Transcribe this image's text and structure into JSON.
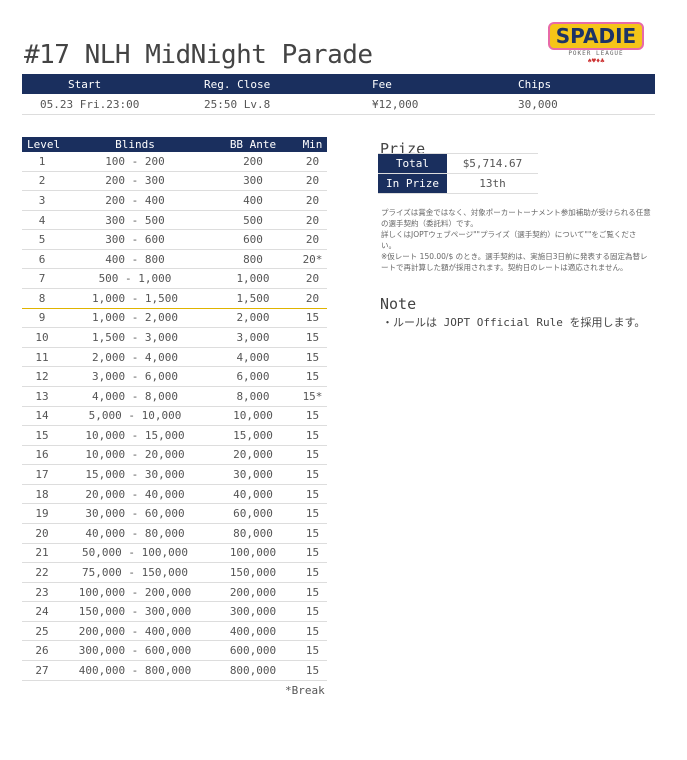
{
  "title": "#17 NLH MidNight Parade",
  "logo": {
    "text": "SPADIE",
    "sub": "POKER LEAGUE",
    "suits": "♠♥♦♣"
  },
  "info": {
    "headers": [
      "Start",
      "Reg. Close",
      "Fee",
      "Chips"
    ],
    "values": [
      "05.23 Fri.23:00",
      "25:50 Lv.8",
      "¥12,000",
      "30,000"
    ]
  },
  "blinds": {
    "headers": [
      "Level",
      "Blinds",
      "BB Ante",
      "Min"
    ],
    "rows": [
      [
        "1",
        "100 - 200",
        "200",
        "20"
      ],
      [
        "2",
        "200 - 300",
        "300",
        "20"
      ],
      [
        "3",
        "200 - 400",
        "400",
        "20"
      ],
      [
        "4",
        "300 - 500",
        "500",
        "20"
      ],
      [
        "5",
        "300 - 600",
        "600",
        "20"
      ],
      [
        "6",
        "400 - 800",
        "800",
        "20*"
      ],
      [
        "7",
        "500 - 1,000",
        "1,000",
        "20"
      ],
      [
        "8",
        "1,000 - 1,500",
        "1,500",
        "20"
      ],
      [
        "9",
        "1,000 - 2,000",
        "2,000",
        "15"
      ],
      [
        "10",
        "1,500 - 3,000",
        "3,000",
        "15"
      ],
      [
        "11",
        "2,000 - 4,000",
        "4,000",
        "15"
      ],
      [
        "12",
        "3,000 - 6,000",
        "6,000",
        "15"
      ],
      [
        "13",
        "4,000 - 8,000",
        "8,000",
        "15*"
      ],
      [
        "14",
        "5,000 - 10,000",
        "10,000",
        "15"
      ],
      [
        "15",
        "10,000 - 15,000",
        "15,000",
        "15"
      ],
      [
        "16",
        "10,000 - 20,000",
        "20,000",
        "15"
      ],
      [
        "17",
        "15,000 - 30,000",
        "30,000",
        "15"
      ],
      [
        "18",
        "20,000 - 40,000",
        "40,000",
        "15"
      ],
      [
        "19",
        "30,000 - 60,000",
        "60,000",
        "15"
      ],
      [
        "20",
        "40,000 - 80,000",
        "80,000",
        "15"
      ],
      [
        "21",
        "50,000 - 100,000",
        "100,000",
        "15"
      ],
      [
        "22",
        "75,000 - 150,000",
        "150,000",
        "15"
      ],
      [
        "23",
        "100,000 - 200,000",
        "200,000",
        "15"
      ],
      [
        "24",
        "150,000 - 300,000",
        "300,000",
        "15"
      ],
      [
        "25",
        "200,000 - 400,000",
        "400,000",
        "15"
      ],
      [
        "26",
        "300,000 - 600,000",
        "600,000",
        "15"
      ],
      [
        "27",
        "400,000 - 800,000",
        "800,000",
        "15"
      ]
    ],
    "break_note": "*Break"
  },
  "prize": {
    "heading": "Prize",
    "rows": [
      [
        "Total",
        "$5,714.67"
      ],
      [
        "In Prize",
        "13th"
      ]
    ],
    "notes": [
      "プライズは賞金ではなく、対象ポーカートーナメント参加補助が受けられる任意の選手契約（委託料）です。",
      "詳しくはJOPTウェブページ\"\"プライズ（選手契約）について\"\"をご覧ください。",
      "※仮レート 150.00/$ のとき。選手契約は、実施日3日前に発表する固定為替レートで再計算した額が採用されます。契約日のレートは適応されません。"
    ]
  },
  "note": {
    "heading": "Note",
    "items": [
      "・ルールは JOPT Official Rule を採用します。"
    ]
  }
}
